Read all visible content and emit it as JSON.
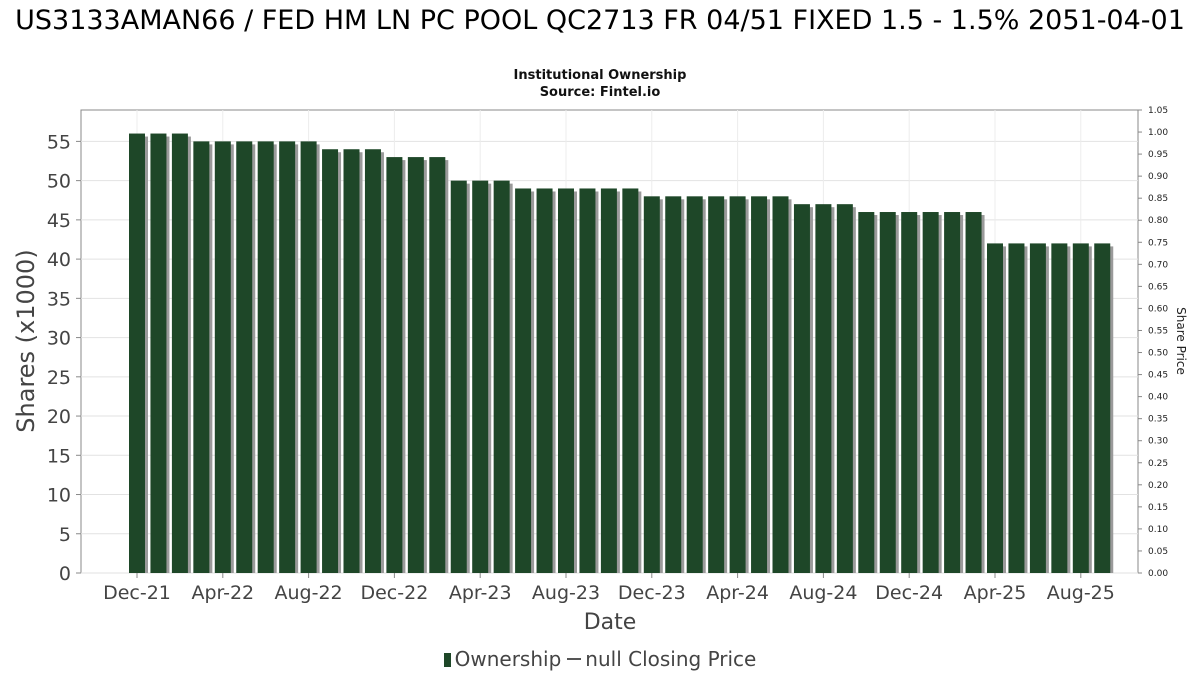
{
  "chart_data": {
    "type": "bar",
    "title": "US3133AMAN66 / FED HM LN PC POOL QC2713 FR 04/51 FIXED 1.5 - 1.5% 2051-04-01",
    "subtitle": "Institutional Ownership",
    "source": "Source: Fintel.io",
    "xlabel": "Date",
    "ylabel": "Shares (x1000)",
    "y2label": "Share Price",
    "ylim": [
      0,
      59
    ],
    "y2lim": [
      0,
      1.05
    ],
    "yticks": [
      0,
      5,
      10,
      15,
      20,
      25,
      30,
      35,
      40,
      45,
      50,
      55
    ],
    "y2ticks": [
      "0.00",
      "0.05",
      "0.10",
      "0.15",
      "0.20",
      "0.25",
      "0.30",
      "0.35",
      "0.40",
      "0.45",
      "0.50",
      "0.55",
      "0.60",
      "0.65",
      "0.70",
      "0.75",
      "0.80",
      "0.85",
      "0.90",
      "0.95",
      "1.00",
      "1.05"
    ],
    "xticks": [
      "Dec-21",
      "Apr-22",
      "Aug-22",
      "Dec-22",
      "Apr-23",
      "Aug-23",
      "Dec-23",
      "Apr-24",
      "Aug-24",
      "Dec-24",
      "Apr-25",
      "Aug-25"
    ],
    "grid": true,
    "legend_position": "bottom",
    "series": [
      {
        "name": "Ownership",
        "color": "#1e4728",
        "values": [
          56,
          56,
          56,
          55,
          55,
          55,
          55,
          55,
          55,
          54,
          54,
          54,
          53,
          53,
          53,
          50,
          50,
          50,
          49,
          49,
          49,
          49,
          49,
          49,
          48,
          48,
          48,
          48,
          48,
          48,
          48,
          47,
          47,
          47,
          46,
          46,
          46,
          46,
          46,
          46,
          42,
          42,
          42,
          42,
          42,
          42
        ]
      },
      {
        "name": "null Closing Price",
        "color": "#555555",
        "values": []
      }
    ]
  }
}
